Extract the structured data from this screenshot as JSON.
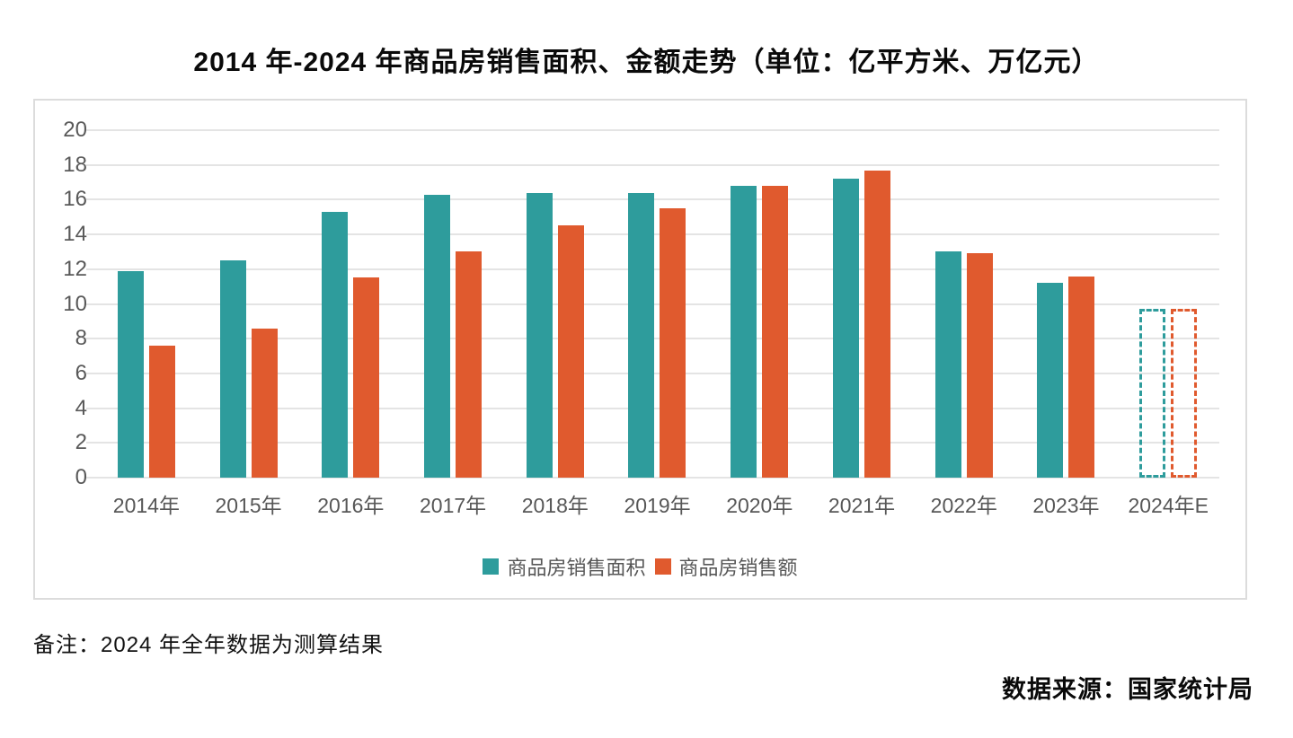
{
  "title": "2014 年-2024 年商品房销售面积、金额走势（单位：亿平方米、万亿元）",
  "note": "备注：2024 年全年数据为测算结果",
  "source": "数据来源：国家统计局",
  "colors": {
    "sales_area": "#2e9c9c",
    "sales_amount": "#e05a2e",
    "gridline": "#e4e4e4",
    "axis_label": "#595959",
    "panel_border": "#dcdcdc"
  },
  "chart_data": {
    "type": "bar",
    "title": "2014 年-2024 年商品房销售面积、金额走势（单位：亿平方米、万亿元）",
    "categories": [
      "2014年",
      "2015年",
      "2016年",
      "2017年",
      "2018年",
      "2019年",
      "2020年",
      "2021年",
      "2022年",
      "2023年",
      "2024年E"
    ],
    "series": [
      {
        "name": "商品房销售面积",
        "color": "#2e9c9c",
        "values": [
          11.9,
          12.5,
          15.3,
          16.3,
          16.4,
          16.4,
          16.8,
          17.2,
          13.0,
          11.2,
          9.7
        ]
      },
      {
        "name": "商品房销售额",
        "color": "#e05a2e",
        "values": [
          7.6,
          8.6,
          11.5,
          13.0,
          14.5,
          15.5,
          16.8,
          17.7,
          12.9,
          11.6,
          9.7
        ]
      }
    ],
    "estimated_category": "2024年E",
    "xlabel": "",
    "ylabel": "",
    "ylim": [
      0,
      20
    ],
    "ytick_step": 2,
    "grid": true,
    "legend_position": "bottom"
  }
}
